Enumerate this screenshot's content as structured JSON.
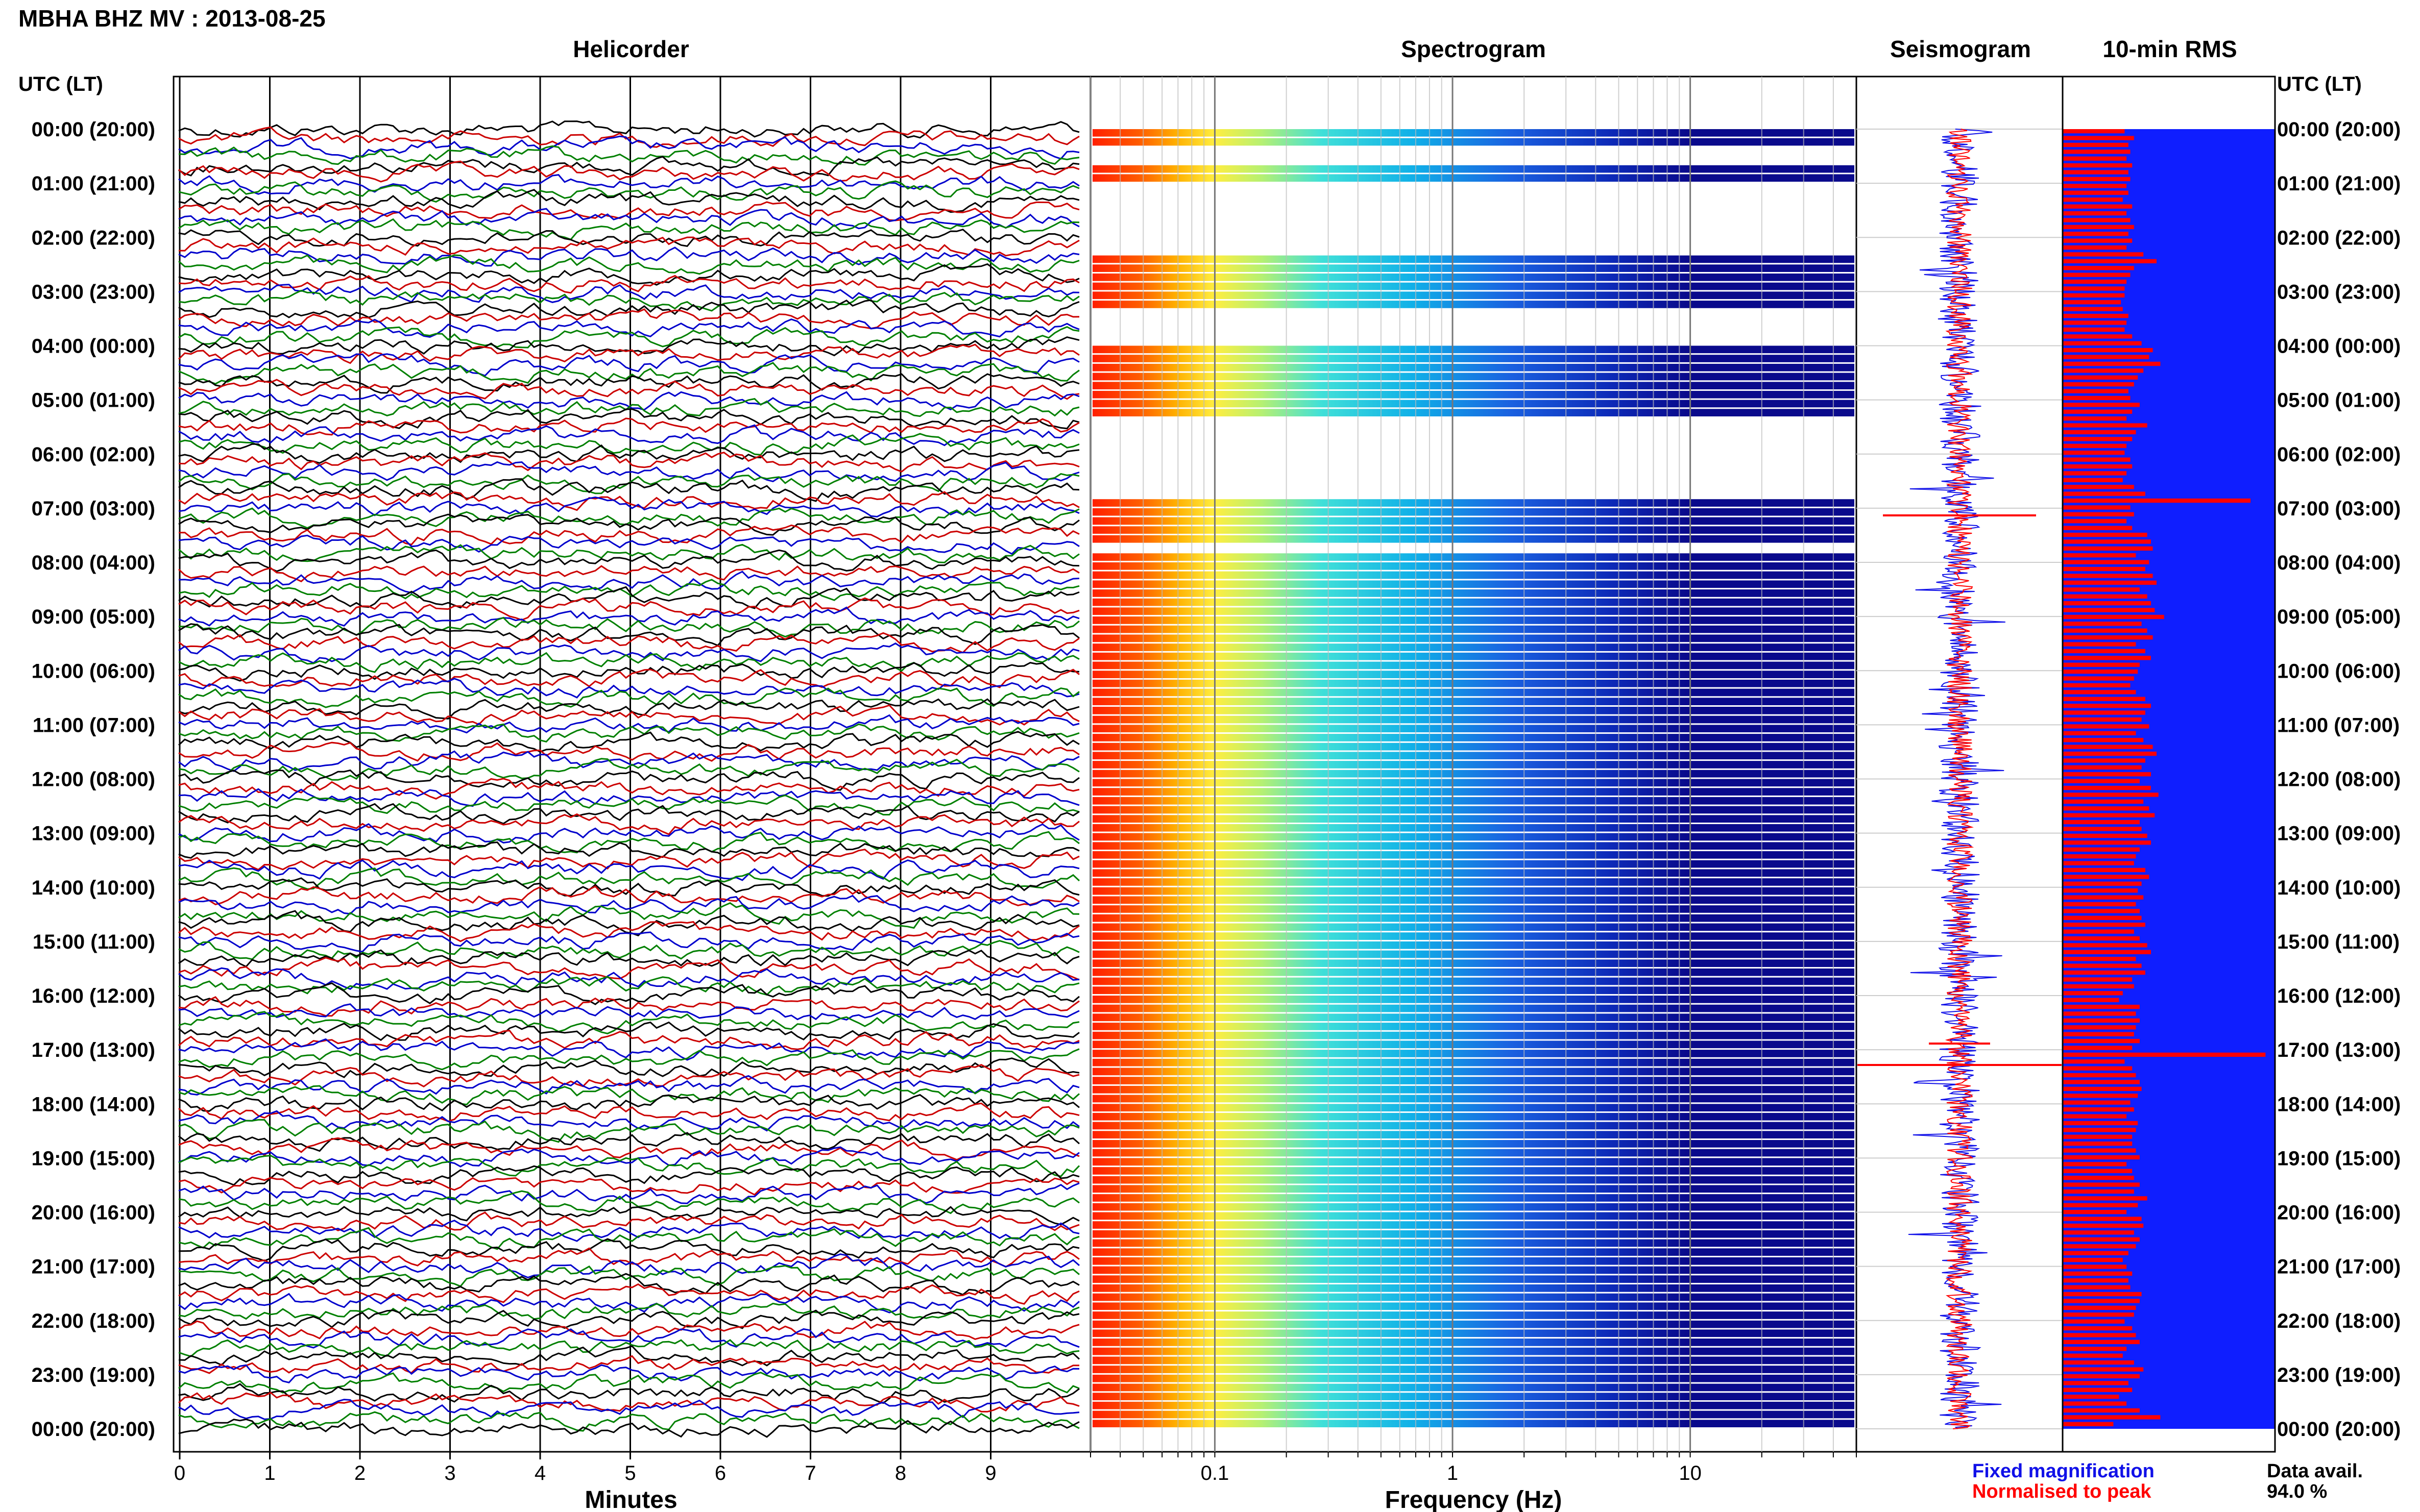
{
  "header": {
    "title": "MBHA BHZ MV : 2013-08-25",
    "utc_label": "UTC (LT)"
  },
  "panels": {
    "helicorder": "Helicorder",
    "spectrogram": "Spectrogram",
    "seismogram": "Seismogram",
    "rms": "10-min RMS"
  },
  "axes": {
    "minutes_label": "Minutes",
    "frequency_label": "Frequency (Hz)"
  },
  "legend": {
    "fixed": "Fixed magnification",
    "normalised": "Normalised to peak",
    "data_avail_label": "Data avail.",
    "data_avail_value": "94.0 %"
  },
  "colors": {
    "fixed": "#1010e8",
    "normalised": "#ff0000",
    "rms_background": "#0f1eff",
    "rms_bars": "#ff0000",
    "spectrogram_dark": "#0a0a8c",
    "trace_colors": [
      "#000000",
      "#cc0000",
      "#0000cc",
      "#008000"
    ]
  },
  "chart_data": [
    {
      "type": "line",
      "panel": "helicorder",
      "title": "Helicorder",
      "xlabel": "Minutes",
      "x_ticks": [
        "0",
        "1",
        "2",
        "3",
        "4",
        "5",
        "6",
        "7",
        "8",
        "9"
      ],
      "xlim": [
        0,
        10
      ],
      "y_tick_labels": [
        "00:00 (20:00)",
        "01:00 (21:00)",
        "02:00 (22:00)",
        "03:00 (23:00)",
        "04:00 (00:00)",
        "05:00 (01:00)",
        "06:00 (02:00)",
        "07:00 (03:00)",
        "08:00 (04:00)",
        "09:00 (05:00)",
        "10:00 (06:00)",
        "11:00 (07:00)",
        "12:00 (08:00)",
        "13:00 (09:00)",
        "14:00 (10:00)",
        "15:00 (11:00)",
        "16:00 (12:00)",
        "17:00 (13:00)",
        "18:00 (14:00)",
        "19:00 (15:00)",
        "20:00 (16:00)",
        "21:00 (17:00)",
        "22:00 (18:00)",
        "23:00 (19:00)",
        "00:00 (20:00)"
      ],
      "rows_per_hour": 6,
      "trace_color_cycle": [
        "black",
        "red",
        "blue",
        "green"
      ]
    },
    {
      "type": "heatmap",
      "panel": "spectrogram",
      "title": "Spectrogram",
      "xlabel": "Frequency (Hz)",
      "x_scale": "log",
      "xlim": [
        0.03,
        50
      ],
      "x_tick_labels": [
        "0.1",
        "1",
        "10"
      ],
      "x_tick_values": [
        0.1,
        1,
        10
      ]
    },
    {
      "type": "line",
      "panel": "seismogram",
      "title": "Seismogram",
      "series": [
        {
          "name": "Fixed magnification",
          "color": "#1010e8"
        },
        {
          "name": "Normalised to peak",
          "color": "#ff0000"
        }
      ]
    },
    {
      "type": "bar",
      "panel": "rms",
      "title": "10-min RMS",
      "orientation": "horizontal",
      "y_tick_labels": [
        "00:00 (20:00)",
        "01:00 (21:00)",
        "02:00 (22:00)",
        "03:00 (23:00)",
        "04:00 (00:00)",
        "05:00 (01:00)",
        "06:00 (02:00)",
        "07:00 (03:00)",
        "08:00 (04:00)",
        "09:00 (05:00)",
        "10:00 (06:00)",
        "11:00 (07:00)",
        "12:00 (08:00)",
        "13:00 (09:00)",
        "14:00 (10:00)",
        "15:00 (11:00)",
        "16:00 (12:00)",
        "17:00 (13:00)",
        "18:00 (14:00)",
        "19:00 (15:00)",
        "20:00 (16:00)",
        "21:00 (17:00)",
        "22:00 (18:00)",
        "23:00 (19:00)",
        "00:00 (20:00)"
      ],
      "values": [
        0.33,
        0.38,
        0.35,
        0.36,
        0.34,
        0.37,
        0.35,
        0.36,
        0.34,
        0.35,
        0.32,
        0.37,
        0.34,
        0.36,
        0.38,
        0.35,
        0.37,
        0.34,
        0.43,
        0.5,
        0.38,
        0.36,
        0.34,
        0.33,
        0.33,
        0.31,
        0.32,
        0.35,
        0.34,
        0.33,
        0.37,
        0.42,
        0.48,
        0.46,
        0.52,
        0.43,
        0.4,
        0.38,
        0.35,
        0.36,
        0.41,
        0.37,
        0.34,
        0.45,
        0.39,
        0.37,
        0.34,
        0.33,
        0.36,
        0.37,
        0.34,
        0.32,
        0.38,
        0.44,
        1.0,
        0.36,
        0.38,
        0.34,
        0.37,
        0.45,
        0.47,
        0.48,
        0.39,
        0.46,
        0.44,
        0.48,
        0.5,
        0.41,
        0.45,
        0.47,
        0.49,
        0.54,
        0.42,
        0.45,
        0.48,
        0.39,
        0.44,
        0.47,
        0.41,
        0.4,
        0.38,
        0.36,
        0.39,
        0.44,
        0.47,
        0.44,
        0.42,
        0.46,
        0.39,
        0.43,
        0.48,
        0.5,
        0.44,
        0.42,
        0.47,
        0.41,
        0.47,
        0.51,
        0.43,
        0.46,
        0.49,
        0.41,
        0.42,
        0.45,
        0.47,
        0.41,
        0.39,
        0.38,
        0.44,
        0.46,
        0.42,
        0.4,
        0.43,
        0.39,
        0.41,
        0.42,
        0.44,
        0.38,
        0.41,
        0.45,
        0.47,
        0.39,
        0.42,
        0.44,
        0.37,
        0.38,
        0.32,
        0.3,
        0.41,
        0.39,
        0.41,
        0.39,
        0.38,
        0.41,
        0.37,
        1.08,
        0.33,
        0.37,
        0.39,
        0.41,
        0.42,
        0.4,
        0.36,
        0.38,
        0.34,
        0.4,
        0.39,
        0.37,
        0.37,
        0.39,
        0.41,
        0.34,
        0.37,
        0.38,
        0.41,
        0.38,
        0.45,
        0.4,
        0.34,
        0.42,
        0.43,
        0.38,
        0.41,
        0.39,
        0.35,
        0.32,
        0.34,
        0.37,
        0.35,
        0.36,
        0.42,
        0.41,
        0.39,
        0.38,
        0.33,
        0.37,
        0.39,
        0.41,
        0.34,
        0.32,
        0.38,
        0.43,
        0.41,
        0.35,
        0.37,
        0.3,
        0.34,
        0.41,
        0.52,
        0.27
      ]
    }
  ]
}
